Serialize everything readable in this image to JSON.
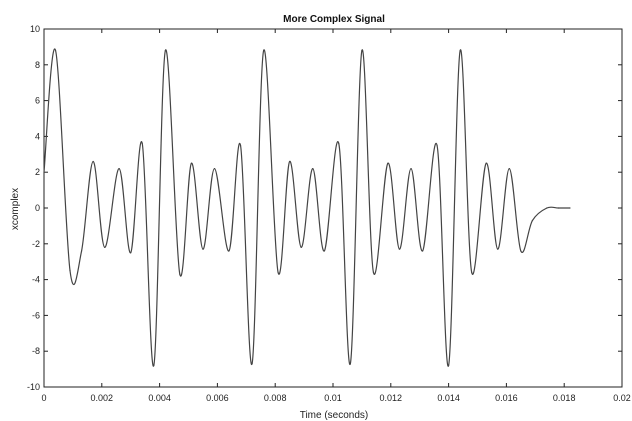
{
  "chart_data": {
    "type": "line",
    "title": "More Complex Signal",
    "xlabel": "Time (seconds)",
    "ylabel": "xcomplex",
    "xlim": [
      0,
      0.02
    ],
    "ylim": [
      -10,
      10
    ],
    "x_ticks": [
      0,
      0.002,
      0.004,
      0.006,
      0.008,
      0.01,
      0.012,
      0.014,
      0.016,
      0.018,
      0.02
    ],
    "x_tick_labels": [
      "0",
      "0.002",
      "0.004",
      "0.006",
      "0.008",
      "0.01",
      "0.012",
      "0.014",
      "0.016",
      "0.018",
      "0.02"
    ],
    "y_ticks": [
      -10,
      -8,
      -6,
      -4,
      -2,
      0,
      2,
      4,
      6,
      8,
      10
    ],
    "y_tick_labels": [
      "-10",
      "-8",
      "-6",
      "-4",
      "-2",
      "0",
      "2",
      "4",
      "6",
      "8",
      "10"
    ],
    "grid": false,
    "colors": {
      "line": "#444444",
      "axes": "#222222",
      "background": "#ffffff"
    },
    "series": [
      {
        "x": [
          0,
          0.0004,
          0.0009,
          0.0013,
          0.0017,
          0.0021,
          0.0026,
          0.003,
          0.0034,
          0.0038,
          0.0042,
          0.0047,
          0.0051,
          0.0055,
          0.0059,
          0.0064,
          0.0068,
          0.0072,
          0.0076,
          0.0081,
          0.0085,
          0.0089,
          0.0093,
          0.0097,
          0.0102,
          0.0106,
          0.011,
          0.0114,
          0.0119,
          0.0123,
          0.0127,
          0.0131,
          0.0136,
          0.014,
          0.0144,
          0.0148,
          0.0153,
          0.0157,
          0.0161,
          0.0165,
          0.0169,
          0.0174,
          0.0178,
          0.0182
        ],
        "y": [
          2.0,
          8.8,
          -3.5,
          -2.4,
          2.6,
          -2.2,
          2.2,
          -2.5,
          3.6,
          -8.8,
          8.8,
          -3.7,
          2.5,
          -2.3,
          2.2,
          -2.4,
          3.5,
          -8.7,
          8.8,
          -3.6,
          2.6,
          -2.2,
          2.2,
          -2.4,
          3.6,
          -8.7,
          8.8,
          -3.6,
          2.5,
          -2.3,
          2.2,
          -2.4,
          3.5,
          -8.8,
          8.8,
          -3.6,
          2.5,
          -2.3,
          2.2,
          -2.4,
          -0.7,
          0,
          0,
          0
        ]
      }
    ]
  }
}
